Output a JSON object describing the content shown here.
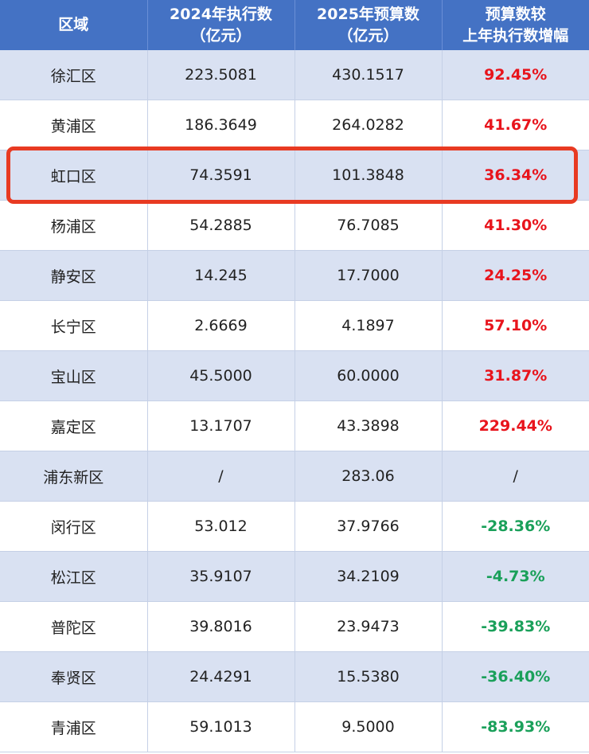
{
  "colors": {
    "header_bg": "#4472c4",
    "row_alt_bg": "#d9e1f2",
    "positive": "#e8141c",
    "negative": "#1aa05a",
    "highlight": "#e83a22"
  },
  "table": {
    "headers": [
      {
        "lines": [
          "区域"
        ]
      },
      {
        "lines": [
          "2024年执行数",
          "（亿元）"
        ]
      },
      {
        "lines": [
          "2025年预算数",
          "（亿元）"
        ]
      },
      {
        "lines": [
          "预算数较",
          "上年执行数增幅"
        ]
      }
    ],
    "rows": [
      {
        "district": "徐汇区",
        "exec_2024": "223.5081",
        "budget_2025": "430.1517",
        "growth": "92.45%",
        "trend": "up"
      },
      {
        "district": "黄浦区",
        "exec_2024": "186.3649",
        "budget_2025": "264.0282",
        "growth": "41.67%",
        "trend": "up"
      },
      {
        "district": "虹口区",
        "exec_2024": "74.3591",
        "budget_2025": "101.3848",
        "growth": "36.34%",
        "trend": "up",
        "highlighted": true
      },
      {
        "district": "杨浦区",
        "exec_2024": "54.2885",
        "budget_2025": "76.7085",
        "growth": "41.30%",
        "trend": "up"
      },
      {
        "district": "静安区",
        "exec_2024": "14.245",
        "budget_2025": "17.7000",
        "growth": "24.25%",
        "trend": "up"
      },
      {
        "district": "长宁区",
        "exec_2024": "2.6669",
        "budget_2025": "4.1897",
        "growth": "57.10%",
        "trend": "up"
      },
      {
        "district": "宝山区",
        "exec_2024": "45.5000",
        "budget_2025": "60.0000",
        "growth": "31.87%",
        "trend": "up"
      },
      {
        "district": "嘉定区",
        "exec_2024": "13.1707",
        "budget_2025": "43.3898",
        "growth": "229.44%",
        "trend": "up"
      },
      {
        "district": "浦东新区",
        "exec_2024": "/",
        "budget_2025": "283.06",
        "growth": "/",
        "trend": "none"
      },
      {
        "district": "闵行区",
        "exec_2024": "53.012",
        "budget_2025": "37.9766",
        "growth": "-28.36%",
        "trend": "down"
      },
      {
        "district": "松江区",
        "exec_2024": "35.9107",
        "budget_2025": "34.2109",
        "growth": "-4.73%",
        "trend": "down"
      },
      {
        "district": "普陀区",
        "exec_2024": "39.8016",
        "budget_2025": "23.9473",
        "growth": "-39.83%",
        "trend": "down"
      },
      {
        "district": "奉贤区",
        "exec_2024": "24.4291",
        "budget_2025": "15.5380",
        "growth": "-36.40%",
        "trend": "down"
      },
      {
        "district": "青浦区",
        "exec_2024": "59.1013",
        "budget_2025": "9.5000",
        "growth": "-83.93%",
        "trend": "down"
      }
    ]
  }
}
